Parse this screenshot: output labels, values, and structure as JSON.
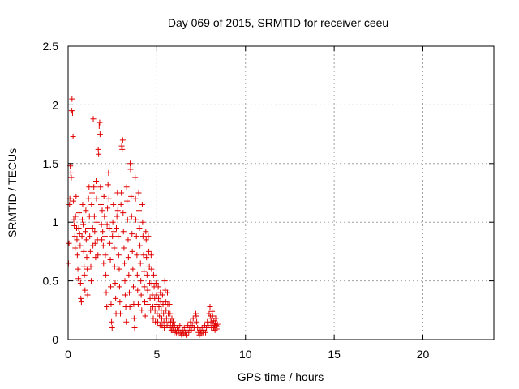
{
  "chart_data": {
    "type": "scatter",
    "title": "Day 069 of 2015, SRMTID for receiver ceeu",
    "xlabel": "GPS time / hours",
    "ylabel": "SRMTID / TECUs",
    "xlim": [
      0,
      24
    ],
    "ylim": [
      0,
      2.5
    ],
    "x_ticks": [
      0,
      5,
      10,
      15,
      20
    ],
    "y_ticks": [
      0,
      0.5,
      1,
      1.5,
      2,
      2.5
    ],
    "x_tick_labels": [
      "0",
      "5",
      "10",
      "15",
      "20"
    ],
    "y_tick_labels": [
      "0",
      "0.5",
      "1",
      "1.5",
      "2",
      "2.5"
    ],
    "grid": true,
    "marker": "+",
    "color": "#e00000",
    "series": [
      {
        "points": [
          [
            0.02,
            0.65
          ],
          [
            0.05,
            0.82
          ],
          [
            0.08,
            1.15
          ],
          [
            0.1,
            1.2
          ],
          [
            0.12,
            1.48
          ],
          [
            0.15,
            1.42
          ],
          [
            0.18,
            1.38
          ],
          [
            0.2,
            1.95
          ],
          [
            0.22,
            2.05
          ],
          [
            0.25,
            1.93
          ],
          [
            0.28,
            1.73
          ],
          [
            0.3,
            1.18
          ],
          [
            0.32,
            1.02
          ],
          [
            0.35,
            0.97
          ],
          [
            0.38,
            0.88
          ],
          [
            0.4,
            0.78
          ],
          [
            0.42,
            1.05
          ],
          [
            0.45,
            1.22
          ],
          [
            0.48,
            0.95
          ],
          [
            0.5,
            0.85
          ],
          [
            0.52,
            0.72
          ],
          [
            0.55,
            0.6
          ],
          [
            0.58,
            0.52
          ],
          [
            0.6,
            0.95
          ],
          [
            0.62,
            1.08
          ],
          [
            0.65,
            0.9
          ],
          [
            0.68,
            0.8
          ],
          [
            0.7,
            0.48
          ],
          [
            0.72,
            0.35
          ],
          [
            0.75,
            0.32
          ],
          [
            0.78,
            0.88
          ],
          [
            0.8,
            1.02
          ],
          [
            0.82,
            1.15
          ],
          [
            0.85,
            0.98
          ],
          [
            0.88,
            0.75
          ],
          [
            0.9,
            0.62
          ],
          [
            0.92,
            0.55
          ],
          [
            0.95,
            0.42
          ],
          [
            0.98,
            0.92
          ],
          [
            1.0,
            1.1
          ],
          [
            1.02,
            0.85
          ],
          [
            1.05,
            0.7
          ],
          [
            1.08,
            0.6
          ],
          [
            1.1,
            0.38
          ],
          [
            1.12,
            0.95
          ],
          [
            1.15,
            1.2
          ],
          [
            1.18,
            1.3
          ],
          [
            1.2,
            1.05
          ],
          [
            1.22,
            0.88
          ],
          [
            1.25,
            0.75
          ],
          [
            1.28,
            0.62
          ],
          [
            1.3,
            0.5
          ],
          [
            1.32,
            1.15
          ],
          [
            1.35,
            1.25
          ],
          [
            1.38,
            0.95
          ],
          [
            1.4,
            0.8
          ],
          [
            1.42,
            1.88
          ],
          [
            1.45,
            1.3
          ],
          [
            1.48,
            1.05
          ],
          [
            1.5,
            0.92
          ],
          [
            1.52,
            0.82
          ],
          [
            1.55,
            0.7
          ],
          [
            1.58,
            1.35
          ],
          [
            1.6,
            1.2
          ],
          [
            1.62,
            1.0
          ],
          [
            1.65,
            0.85
          ],
          [
            1.68,
            0.72
          ],
          [
            1.7,
            1.62
          ],
          [
            1.72,
            1.58
          ],
          [
            1.75,
            1.82
          ],
          [
            1.78,
            1.85
          ],
          [
            1.8,
            1.75
          ],
          [
            1.82,
            1.3
          ],
          [
            1.85,
            1.15
          ],
          [
            1.88,
            0.98
          ],
          [
            1.9,
            0.85
          ],
          [
            1.92,
            1.1
          ],
          [
            1.95,
            0.92
          ],
          [
            1.98,
            0.8
          ],
          [
            2.0,
            0.65
          ],
          [
            2.02,
            1.22
          ],
          [
            2.05,
            1.05
          ],
          [
            2.08,
            0.88
          ],
          [
            2.1,
            0.72
          ],
          [
            2.12,
            0.55
          ],
          [
            2.15,
            0.4
          ],
          [
            2.18,
            0.28
          ],
          [
            2.2,
            0.98
          ],
          [
            2.22,
            1.12
          ],
          [
            2.25,
            1.32
          ],
          [
            2.28,
            1.42
          ],
          [
            2.3,
            1.2
          ],
          [
            2.32,
            0.95
          ],
          [
            2.35,
            0.82
          ],
          [
            2.38,
            0.68
          ],
          [
            2.4,
            0.45
          ],
          [
            2.42,
            0.3
          ],
          [
            2.45,
            0.15
          ],
          [
            2.48,
            0.1
          ],
          [
            2.5,
            0.88
          ],
          [
            2.52,
            1.0
          ],
          [
            2.55,
            1.15
          ],
          [
            2.58,
            0.92
          ],
          [
            2.6,
            0.78
          ],
          [
            2.62,
            0.62
          ],
          [
            2.65,
            0.48
          ],
          [
            2.68,
            0.35
          ],
          [
            2.7,
            0.22
          ],
          [
            2.72,
            0.95
          ],
          [
            2.75,
            1.05
          ],
          [
            2.78,
            1.25
          ],
          [
            2.8,
            1.1
          ],
          [
            2.82,
            0.88
          ],
          [
            2.85,
            0.72
          ],
          [
            2.88,
            0.6
          ],
          [
            2.9,
            0.45
          ],
          [
            2.92,
            0.32
          ],
          [
            2.95,
            0.22
          ],
          [
            2.98,
            1.15
          ],
          [
            3.0,
            1.25
          ],
          [
            3.02,
            1.65
          ],
          [
            3.05,
            1.62
          ],
          [
            3.08,
            1.7
          ],
          [
            3.1,
            1.08
          ],
          [
            3.12,
            0.92
          ],
          [
            3.15,
            0.78
          ],
          [
            3.18,
            0.65
          ],
          [
            3.2,
            0.5
          ],
          [
            3.22,
            0.38
          ],
          [
            3.25,
            0.28
          ],
          [
            3.28,
            0.15
          ],
          [
            3.3,
            1.3
          ],
          [
            3.32,
            1.18
          ],
          [
            3.35,
            1.02
          ],
          [
            3.38,
            0.85
          ],
          [
            3.4,
            0.7
          ],
          [
            3.42,
            0.55
          ],
          [
            3.45,
            0.4
          ],
          [
            3.48,
            0.28
          ],
          [
            3.5,
            1.5
          ],
          [
            3.52,
            1.45
          ],
          [
            3.55,
            1.22
          ],
          [
            3.58,
            1.05
          ],
          [
            3.6,
            0.9
          ],
          [
            3.62,
            0.75
          ],
          [
            3.65,
            0.6
          ],
          [
            3.68,
            0.45
          ],
          [
            3.7,
            0.3
          ],
          [
            3.72,
            0.18
          ],
          [
            3.75,
            0.1
          ],
          [
            3.78,
            1.38
          ],
          [
            3.8,
            1.2
          ],
          [
            3.82,
            1.02
          ],
          [
            3.85,
            0.88
          ],
          [
            3.88,
            0.72
          ],
          [
            3.9,
            0.55
          ],
          [
            3.92,
            0.42
          ],
          [
            3.95,
            0.3
          ],
          [
            3.98,
            1.25
          ],
          [
            4.0,
            1.1
          ],
          [
            4.02,
            0.95
          ],
          [
            4.05,
            0.8
          ],
          [
            4.08,
            0.65
          ],
          [
            4.1,
            0.5
          ],
          [
            4.12,
            0.38
          ],
          [
            4.15,
            0.25
          ],
          [
            4.18,
            1.15
          ],
          [
            4.2,
            1.0
          ],
          [
            4.22,
            0.88
          ],
          [
            4.25,
            0.72
          ],
          [
            4.28,
            0.58
          ],
          [
            4.3,
            0.45
          ],
          [
            4.32,
            0.32
          ],
          [
            4.35,
            0.2
          ],
          [
            4.38,
            0.92
          ],
          [
            4.4,
            0.85
          ],
          [
            4.42,
            0.7
          ],
          [
            4.45,
            0.55
          ],
          [
            4.48,
            0.42
          ],
          [
            4.5,
            0.3
          ],
          [
            4.52,
            0.88
          ],
          [
            4.55,
            0.75
          ],
          [
            4.58,
            0.62
          ],
          [
            4.6,
            0.48
          ],
          [
            4.62,
            0.35
          ],
          [
            4.65,
            0.25
          ],
          [
            4.68,
            0.72
          ],
          [
            4.7,
            0.6
          ],
          [
            4.72,
            0.48
          ],
          [
            4.75,
            0.38
          ],
          [
            4.78,
            0.28
          ],
          [
            4.8,
            0.18
          ],
          [
            4.82,
            0.55
          ],
          [
            4.85,
            0.45
          ],
          [
            4.88,
            0.35
          ],
          [
            4.9,
            0.25
          ],
          [
            4.92,
            0.15
          ],
          [
            4.95,
            0.48
          ],
          [
            4.98,
            0.38
          ],
          [
            5.0,
            0.3
          ],
          [
            5.02,
            0.22
          ],
          [
            5.05,
            0.15
          ],
          [
            5.08,
            0.45
          ],
          [
            5.1,
            0.35
          ],
          [
            5.12,
            0.28
          ],
          [
            5.15,
            0.2
          ],
          [
            5.18,
            0.12
          ],
          [
            5.2,
            0.4
          ],
          [
            5.22,
            0.32
          ],
          [
            5.25,
            0.25
          ],
          [
            5.28,
            0.18
          ],
          [
            5.3,
            0.12
          ],
          [
            5.32,
            0.38
          ],
          [
            5.35,
            0.3
          ],
          [
            5.38,
            0.22
          ],
          [
            5.4,
            0.15
          ],
          [
            5.42,
            0.1
          ],
          [
            5.45,
            0.5
          ],
          [
            5.48,
            0.42
          ],
          [
            5.5,
            0.32
          ],
          [
            5.52,
            0.25
          ],
          [
            5.55,
            0.18
          ],
          [
            5.58,
            0.12
          ],
          [
            5.6,
            0.4
          ],
          [
            5.62,
            0.3
          ],
          [
            5.65,
            0.22
          ],
          [
            5.68,
            0.15
          ],
          [
            5.7,
            0.1
          ],
          [
            5.72,
            0.3
          ],
          [
            5.75,
            0.22
          ],
          [
            5.78,
            0.15
          ],
          [
            5.8,
            0.1
          ],
          [
            5.82,
            0.08
          ],
          [
            5.85,
            0.18
          ],
          [
            5.88,
            0.12
          ],
          [
            5.9,
            0.08
          ],
          [
            5.92,
            0.15
          ],
          [
            5.95,
            0.1
          ],
          [
            5.98,
            0.06
          ],
          [
            6.0,
            0.12
          ],
          [
            6.05,
            0.08
          ],
          [
            6.1,
            0.06
          ],
          [
            6.15,
            0.1
          ],
          [
            6.2,
            0.05
          ],
          [
            6.25,
            0.08
          ],
          [
            6.3,
            0.12
          ],
          [
            6.35,
            0.06
          ],
          [
            6.4,
            0.04
          ],
          [
            6.45,
            0.08
          ],
          [
            6.5,
            0.05
          ],
          [
            6.55,
            0.1
          ],
          [
            6.6,
            0.06
          ],
          [
            6.65,
            0.04
          ],
          [
            6.7,
            0.08
          ],
          [
            6.75,
            0.12
          ],
          [
            6.8,
            0.06
          ],
          [
            6.85,
            0.1
          ],
          [
            6.9,
            0.15
          ],
          [
            6.95,
            0.08
          ],
          [
            7.0,
            0.12
          ],
          [
            7.05,
            0.18
          ],
          [
            7.1,
            0.1
          ],
          [
            7.15,
            0.14
          ],
          [
            7.2,
            0.22
          ],
          [
            7.22,
            0.2
          ],
          [
            7.25,
            0.15
          ],
          [
            7.3,
            0.1
          ],
          [
            7.35,
            0.06
          ],
          [
            7.4,
            0.04
          ],
          [
            7.45,
            0.08
          ],
          [
            7.5,
            0.05
          ],
          [
            7.55,
            0.1
          ],
          [
            7.6,
            0.06
          ],
          [
            7.65,
            0.08
          ],
          [
            7.7,
            0.12
          ],
          [
            7.75,
            0.06
          ],
          [
            7.8,
            0.1
          ],
          [
            7.85,
            0.15
          ],
          [
            7.9,
            0.12
          ],
          [
            7.95,
            0.22
          ],
          [
            8.0,
            0.28
          ],
          [
            8.02,
            0.2
          ],
          [
            8.05,
            0.15
          ],
          [
            8.08,
            0.1
          ],
          [
            8.1,
            0.18
          ],
          [
            8.12,
            0.24
          ],
          [
            8.15,
            0.2
          ],
          [
            8.18,
            0.14
          ],
          [
            8.2,
            0.1
          ],
          [
            8.22,
            0.16
          ],
          [
            8.25,
            0.12
          ],
          [
            8.28,
            0.08
          ],
          [
            8.3,
            0.14
          ],
          [
            8.32,
            0.18
          ],
          [
            8.35,
            0.12
          ],
          [
            8.38,
            0.09
          ],
          [
            8.4,
            0.11
          ],
          [
            8.42,
            0.13
          ]
        ]
      }
    ]
  }
}
